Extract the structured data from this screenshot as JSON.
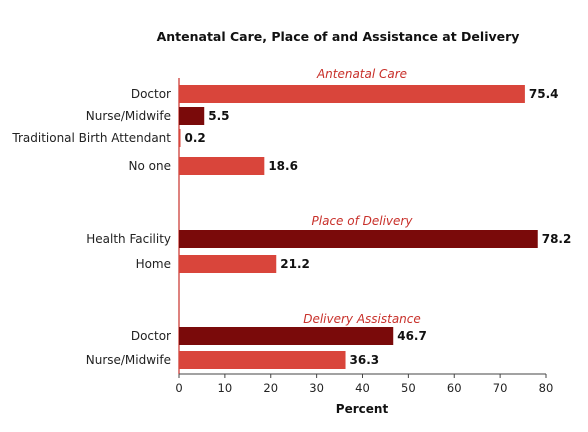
{
  "chart_data": {
    "type": "bar",
    "orientation": "horizontal",
    "title": "Antenatal Care, Place of and Assistance at Delivery",
    "xlabel": "Percent",
    "ylabel": "",
    "xlim": [
      0,
      80
    ],
    "x_ticks": [
      "0",
      "10",
      "20",
      "30",
      "40",
      "50",
      "60",
      "70",
      "80"
    ],
    "grid": false,
    "colors": {
      "light": "#D9453B",
      "dark": "#7A0A0A",
      "group_label": "#C8302A"
    },
    "groups": [
      {
        "name": "Antenatal Care",
        "bars": [
          {
            "category": "Doctor",
            "value": 75.4,
            "label": "75.4",
            "shade": "light"
          },
          {
            "category": "Nurse/Midwife",
            "value": 5.5,
            "label": "5.5",
            "shade": "dark"
          },
          {
            "category": "Traditional Birth Attendant",
            "value": 0.2,
            "label": "0.2",
            "shade": "light"
          },
          {
            "category": "No one",
            "value": 18.6,
            "label": "18.6",
            "shade": "light"
          }
        ]
      },
      {
        "name": "Place of Delivery",
        "bars": [
          {
            "category": "Health Facility",
            "value": 78.2,
            "label": "78.2",
            "shade": "dark"
          },
          {
            "category": "Home",
            "value": 21.2,
            "label": "21.2",
            "shade": "light"
          }
        ]
      },
      {
        "name": "Delivery Assistance",
        "bars": [
          {
            "category": "Doctor",
            "value": 46.7,
            "label": "46.7",
            "shade": "dark"
          },
          {
            "category": "Nurse/Midwife",
            "value": 36.3,
            "label": "36.3",
            "shade": "light"
          }
        ]
      }
    ]
  }
}
